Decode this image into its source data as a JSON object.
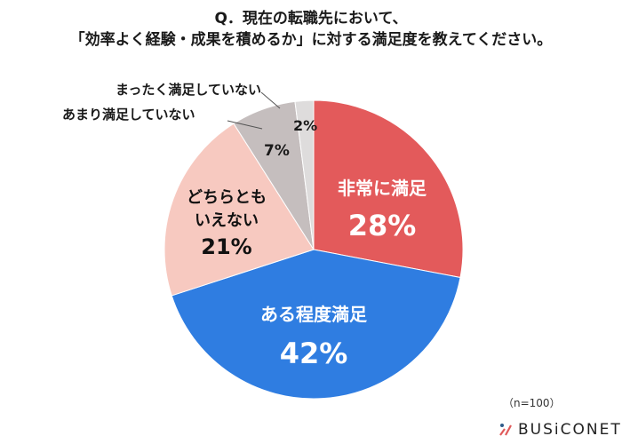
{
  "title": {
    "line1": "Q．現在の転職先において、",
    "line2": "「効率よく経験・成果を積めるか」に対する満足度を教えてください。"
  },
  "chart_data": {
    "type": "pie",
    "title": "Q．現在の転職先において、「効率よく経験・成果を積めるか」に対する満足度を教えてください。",
    "categories": [
      "非常に満足",
      "ある程度満足",
      "どちらともいえない",
      "あまり満足していない",
      "まったく満足していない"
    ],
    "values": [
      28,
      42,
      21,
      7,
      2
    ],
    "unit": "%",
    "colors": [
      "#e35a5b",
      "#2f7de1",
      "#f7c9c0",
      "#c5bebe",
      "#dedcdc"
    ],
    "start_angle": "12 o'clock, clockwise",
    "sample_size": "n=100"
  },
  "labels": {
    "very_satisfied": {
      "name": "非常に満足",
      "pct": "28%"
    },
    "somewhat_satisfied": {
      "name": "ある程度満足",
      "pct": "42%"
    },
    "neutral": {
      "name1": "どちらとも",
      "name2": "いえない",
      "pct": "21%"
    },
    "not_very": {
      "name": "あまり満足していない",
      "pct": "7%"
    },
    "not_at_all": {
      "name": "まったく満足していない",
      "pct": "2%"
    }
  },
  "footer": {
    "note": "（n=100）",
    "brand": "BUSiCONET"
  }
}
